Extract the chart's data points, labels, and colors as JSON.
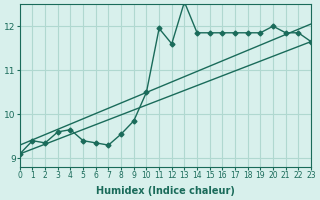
{
  "xlabel": "Humidex (Indice chaleur)",
  "ylabel": "",
  "bg_color": "#d8f0ec",
  "line_color": "#1a6b5a",
  "grid_color": "#b0d8d0",
  "xlim": [
    0,
    23
  ],
  "ylim": [
    8.8,
    12.5
  ],
  "yticks": [
    9,
    10,
    11,
    12
  ],
  "xticks": [
    0,
    1,
    2,
    3,
    4,
    5,
    6,
    7,
    8,
    9,
    10,
    11,
    12,
    13,
    14,
    15,
    16,
    17,
    18,
    19,
    20,
    21,
    22,
    23
  ],
  "data_x": [
    0,
    1,
    2,
    3,
    4,
    5,
    6,
    7,
    8,
    9,
    10,
    11,
    12,
    13,
    14,
    15,
    16,
    17,
    18,
    19,
    20,
    21,
    22,
    23
  ],
  "data_y": [
    9.1,
    9.4,
    9.35,
    9.6,
    9.65,
    9.4,
    9.35,
    9.3,
    9.55,
    9.85,
    10.5,
    11.95,
    11.6,
    12.55,
    11.85,
    11.85,
    11.85,
    11.85,
    11.85,
    11.85,
    12.0,
    11.85,
    11.85,
    11.65
  ],
  "trend1_x": [
    0,
    23
  ],
  "trend1_y": [
    9.1,
    11.65
  ],
  "trend2_x": [
    0,
    23
  ],
  "trend2_y": [
    9.3,
    12.05
  ]
}
